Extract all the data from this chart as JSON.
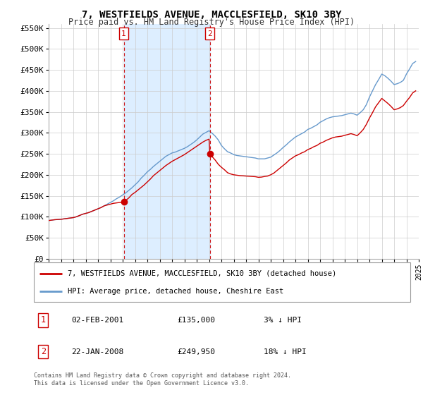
{
  "title": "7, WESTFIELDS AVENUE, MACCLESFIELD, SK10 3BY",
  "subtitle": "Price paid vs. HM Land Registry's House Price Index (HPI)",
  "legend_property": "7, WESTFIELDS AVENUE, MACCLESFIELD, SK10 3BY (detached house)",
  "legend_hpi": "HPI: Average price, detached house, Cheshire East",
  "footer1": "Contains HM Land Registry data © Crown copyright and database right 2024.",
  "footer2": "This data is licensed under the Open Government Licence v3.0.",
  "annotation1_label": "1",
  "annotation1_date": "02-FEB-2001",
  "annotation1_price": "£135,000",
  "annotation1_hpi": "3% ↓ HPI",
  "annotation2_label": "2",
  "annotation2_date": "22-JAN-2008",
  "annotation2_price": "£249,950",
  "annotation2_hpi": "18% ↓ HPI",
  "sale1_x": 2001.09,
  "sale1_y": 135000,
  "sale2_x": 2008.06,
  "sale2_y": 249950,
  "vline1_x": 2001.09,
  "vline2_x": 2008.06,
  "shade_start": 2001.09,
  "shade_end": 2008.06,
  "property_color": "#cc0000",
  "hpi_color": "#6699cc",
  "shade_color": "#ddeeff",
  "vline_color": "#cc0000",
  "ylim_min": 0,
  "ylim_max": 560000,
  "xlim_min": 1995,
  "xlim_max": 2025,
  "yticks": [
    0,
    50000,
    100000,
    150000,
    200000,
    250000,
    300000,
    350000,
    400000,
    450000,
    500000,
    550000
  ],
  "ytick_labels": [
    "£0",
    "£50K",
    "£100K",
    "£150K",
    "£200K",
    "£250K",
    "£300K",
    "£350K",
    "£400K",
    "£450K",
    "£500K",
    "£550K"
  ],
  "hpi_x": [
    1995.0,
    1995.25,
    1995.5,
    1995.75,
    1996.0,
    1996.25,
    1996.5,
    1996.75,
    1997.0,
    1997.25,
    1997.5,
    1997.75,
    1998.0,
    1998.25,
    1998.5,
    1998.75,
    1999.0,
    1999.25,
    1999.5,
    1999.75,
    2000.0,
    2000.25,
    2000.5,
    2000.75,
    2001.0,
    2001.25,
    2001.5,
    2001.75,
    2002.0,
    2002.25,
    2002.5,
    2002.75,
    2003.0,
    2003.25,
    2003.5,
    2003.75,
    2004.0,
    2004.25,
    2004.5,
    2004.75,
    2005.0,
    2005.25,
    2005.5,
    2005.75,
    2006.0,
    2006.25,
    2006.5,
    2006.75,
    2007.0,
    2007.25,
    2007.5,
    2007.75,
    2008.0,
    2008.25,
    2008.5,
    2008.75,
    2009.0,
    2009.25,
    2009.5,
    2009.75,
    2010.0,
    2010.25,
    2010.5,
    2010.75,
    2011.0,
    2011.25,
    2011.5,
    2011.75,
    2012.0,
    2012.25,
    2012.5,
    2012.75,
    2013.0,
    2013.25,
    2013.5,
    2013.75,
    2014.0,
    2014.25,
    2014.5,
    2014.75,
    2015.0,
    2015.25,
    2015.5,
    2015.75,
    2016.0,
    2016.25,
    2016.5,
    2016.75,
    2017.0,
    2017.25,
    2017.5,
    2017.75,
    2018.0,
    2018.25,
    2018.5,
    2018.75,
    2019.0,
    2019.25,
    2019.5,
    2019.75,
    2020.0,
    2020.25,
    2020.5,
    2020.75,
    2021.0,
    2021.25,
    2021.5,
    2021.75,
    2022.0,
    2022.25,
    2022.5,
    2022.75,
    2023.0,
    2023.25,
    2023.5,
    2023.75,
    2024.0,
    2024.25,
    2024.5,
    2024.75
  ],
  "hpi_y": [
    91000,
    92000,
    93000,
    93500,
    94000,
    95000,
    96000,
    97000,
    98000,
    100000,
    103000,
    106000,
    108000,
    110000,
    113000,
    116000,
    119000,
    122000,
    126000,
    130000,
    134000,
    138000,
    143000,
    147000,
    152000,
    157000,
    163000,
    169000,
    176000,
    183000,
    192000,
    199000,
    207000,
    213000,
    220000,
    226000,
    232000,
    238000,
    244000,
    248000,
    252000,
    254000,
    257000,
    260000,
    263000,
    267000,
    272000,
    277000,
    283000,
    290000,
    297000,
    301000,
    305000,
    299000,
    292000,
    283000,
    270000,
    262000,
    255000,
    252000,
    248000,
    246000,
    245000,
    244000,
    243000,
    242000,
    241000,
    240000,
    238000,
    238000,
    238000,
    240000,
    242000,
    247000,
    252000,
    258000,
    265000,
    271000,
    278000,
    284000,
    290000,
    294000,
    298000,
    302000,
    308000,
    311000,
    315000,
    319000,
    325000,
    329000,
    333000,
    336000,
    338000,
    339000,
    340000,
    341000,
    343000,
    345000,
    347000,
    345000,
    342000,
    348000,
    355000,
    367000,
    385000,
    400000,
    415000,
    427000,
    440000,
    436000,
    430000,
    423000,
    415000,
    417000,
    420000,
    425000,
    440000,
    452000,
    465000,
    470000
  ],
  "prop_x": [
    1995.0,
    1995.25,
    1995.5,
    1995.75,
    1996.0,
    1996.25,
    1996.5,
    1996.75,
    1997.0,
    1997.25,
    1997.5,
    1997.75,
    1998.0,
    1998.25,
    1998.5,
    1998.75,
    1999.0,
    1999.25,
    1999.5,
    1999.75,
    2000.0,
    2000.25,
    2000.5,
    2000.75,
    2001.0,
    2001.09,
    2001.5,
    2001.75,
    2002.0,
    2002.25,
    2002.5,
    2002.75,
    2003.0,
    2003.25,
    2003.5,
    2003.75,
    2004.0,
    2004.25,
    2004.5,
    2004.75,
    2005.0,
    2005.25,
    2005.5,
    2005.75,
    2006.0,
    2006.25,
    2006.5,
    2006.75,
    2007.0,
    2007.25,
    2007.5,
    2007.75,
    2008.0,
    2008.06,
    2008.5,
    2008.75,
    2009.0,
    2009.25,
    2009.5,
    2009.75,
    2010.0,
    2010.25,
    2010.5,
    2010.75,
    2011.0,
    2011.25,
    2011.5,
    2011.75,
    2012.0,
    2012.25,
    2012.5,
    2012.75,
    2013.0,
    2013.25,
    2013.5,
    2013.75,
    2014.0,
    2014.25,
    2014.5,
    2014.75,
    2015.0,
    2015.25,
    2015.5,
    2015.75,
    2016.0,
    2016.25,
    2016.5,
    2016.75,
    2017.0,
    2017.25,
    2017.5,
    2017.75,
    2018.0,
    2018.25,
    2018.5,
    2018.75,
    2019.0,
    2019.25,
    2019.5,
    2019.75,
    2020.0,
    2020.25,
    2020.5,
    2020.75,
    2021.0,
    2021.25,
    2021.5,
    2021.75,
    2022.0,
    2022.25,
    2022.5,
    2022.75,
    2023.0,
    2023.25,
    2023.5,
    2023.75,
    2024.0,
    2024.25,
    2024.5,
    2024.75
  ],
  "prop_y": [
    91000,
    92000,
    93000,
    93500,
    94000,
    95000,
    96000,
    97000,
    98000,
    100000,
    103000,
    106000,
    108000,
    110000,
    113000,
    116000,
    119000,
    122000,
    126000,
    128000,
    130000,
    132000,
    133000,
    134000,
    134500,
    135000,
    145000,
    153000,
    158000,
    164000,
    170000,
    176000,
    183000,
    190000,
    198000,
    204000,
    210000,
    216000,
    222000,
    227000,
    232000,
    236000,
    240000,
    244000,
    248000,
    253000,
    258000,
    263000,
    268000,
    273000,
    278000,
    282000,
    285000,
    249950,
    235000,
    225000,
    218000,
    212000,
    205000,
    202000,
    200000,
    199000,
    198000,
    197500,
    197000,
    196500,
    196000,
    195500,
    194000,
    194500,
    196000,
    197000,
    200000,
    204000,
    210000,
    216000,
    222000,
    228000,
    235000,
    240000,
    245000,
    248000,
    252000,
    255000,
    260000,
    263000,
    267000,
    270000,
    275000,
    278000,
    282000,
    285000,
    288000,
    290000,
    291000,
    292000,
    294000,
    296000,
    298000,
    296000,
    293000,
    300000,
    308000,
    320000,
    335000,
    348000,
    362000,
    372000,
    382000,
    376000,
    370000,
    363000,
    355000,
    357000,
    360000,
    365000,
    375000,
    384000,
    395000,
    400000
  ]
}
